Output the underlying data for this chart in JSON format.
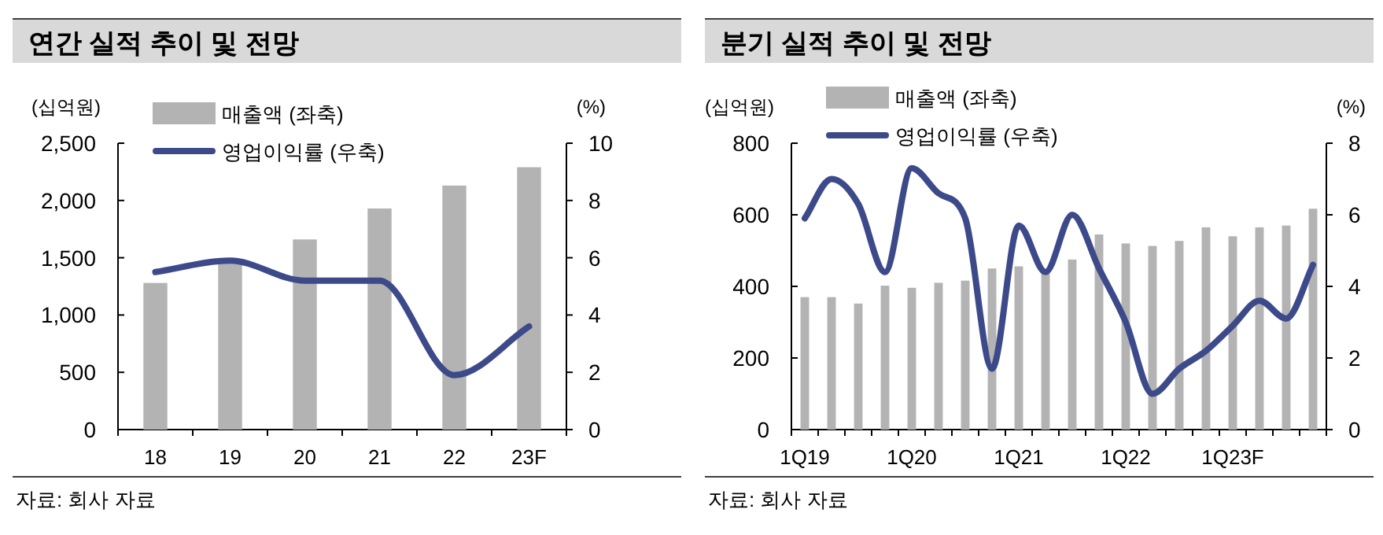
{
  "chart_data": [
    {
      "type": "bar",
      "title": "연간 실적 추이 및 전망",
      "ylabel": "(십억원)",
      "y2label": "(%)",
      "legend": "top left",
      "grid": false,
      "categories": [
        "18",
        "19",
        "20",
        "21",
        "22",
        "23F"
      ],
      "series": [
        {
          "name": "매출액 (좌축)",
          "color": "#b3b3b3",
          "values": [
            1280,
            1490,
            1660,
            1930,
            2130,
            2290
          ]
        },
        {
          "name": "영업이익률 (우축)",
          "type": "line",
          "axis": "y2",
          "color": "#3d4a8a",
          "values": [
            5.5,
            5.9,
            5.2,
            5.2,
            1.9,
            3.6
          ]
        }
      ],
      "ylim": [
        0,
        2500
      ],
      "yticks": [
        0,
        500,
        {
          "value": 1000,
          "label": "1,000"
        },
        {
          "value": 1500,
          "label": "1,500"
        },
        {
          "value": 2000,
          "label": "2,000"
        },
        {
          "value": 2500,
          "label": "2,500"
        }
      ],
      "y2lim": [
        0,
        10
      ],
      "y2ticks": [
        0,
        2,
        4,
        6,
        8,
        10
      ],
      "annotations": [
        "자료: 회사 자료"
      ]
    },
    {
      "type": "bar",
      "title": "분기 실적 추이 및 전망",
      "ylabel": "(십억원)",
      "y2label": "(%)",
      "legend": "top left",
      "grid": false,
      "categories": [
        "1Q19",
        null,
        null,
        null,
        "1Q20",
        null,
        null,
        null,
        "1Q21",
        null,
        null,
        null,
        "1Q22",
        null,
        null,
        null,
        "1Q23F",
        null,
        null,
        null
      ],
      "series": [
        {
          "name": "매출액 (좌축)",
          "color": "#b3b3b3",
          "values": [
            370,
            370,
            352,
            402,
            396,
            410,
            416,
            450,
            456,
            440,
            475,
            545,
            520,
            513,
            527,
            565,
            540,
            565,
            570,
            617
          ]
        },
        {
          "name": "영업이익률 (우축)",
          "type": "line",
          "axis": "y2",
          "color": "#3d4a8a",
          "values": [
            5.9,
            7.0,
            6.3,
            4.4,
            7.3,
            6.6,
            5.9,
            1.7,
            5.7,
            4.4,
            6.0,
            4.5,
            3.0,
            1.0,
            1.7,
            2.2,
            2.9,
            3.6,
            3.1,
            4.6
          ]
        }
      ],
      "ylim": [
        0,
        800
      ],
      "yticks": [
        0,
        200,
        400,
        600,
        800
      ],
      "y2lim": [
        0,
        8
      ],
      "y2ticks": [
        0,
        2,
        4,
        6,
        8
      ],
      "annotations": [
        "자료: 회사 자료"
      ]
    }
  ]
}
